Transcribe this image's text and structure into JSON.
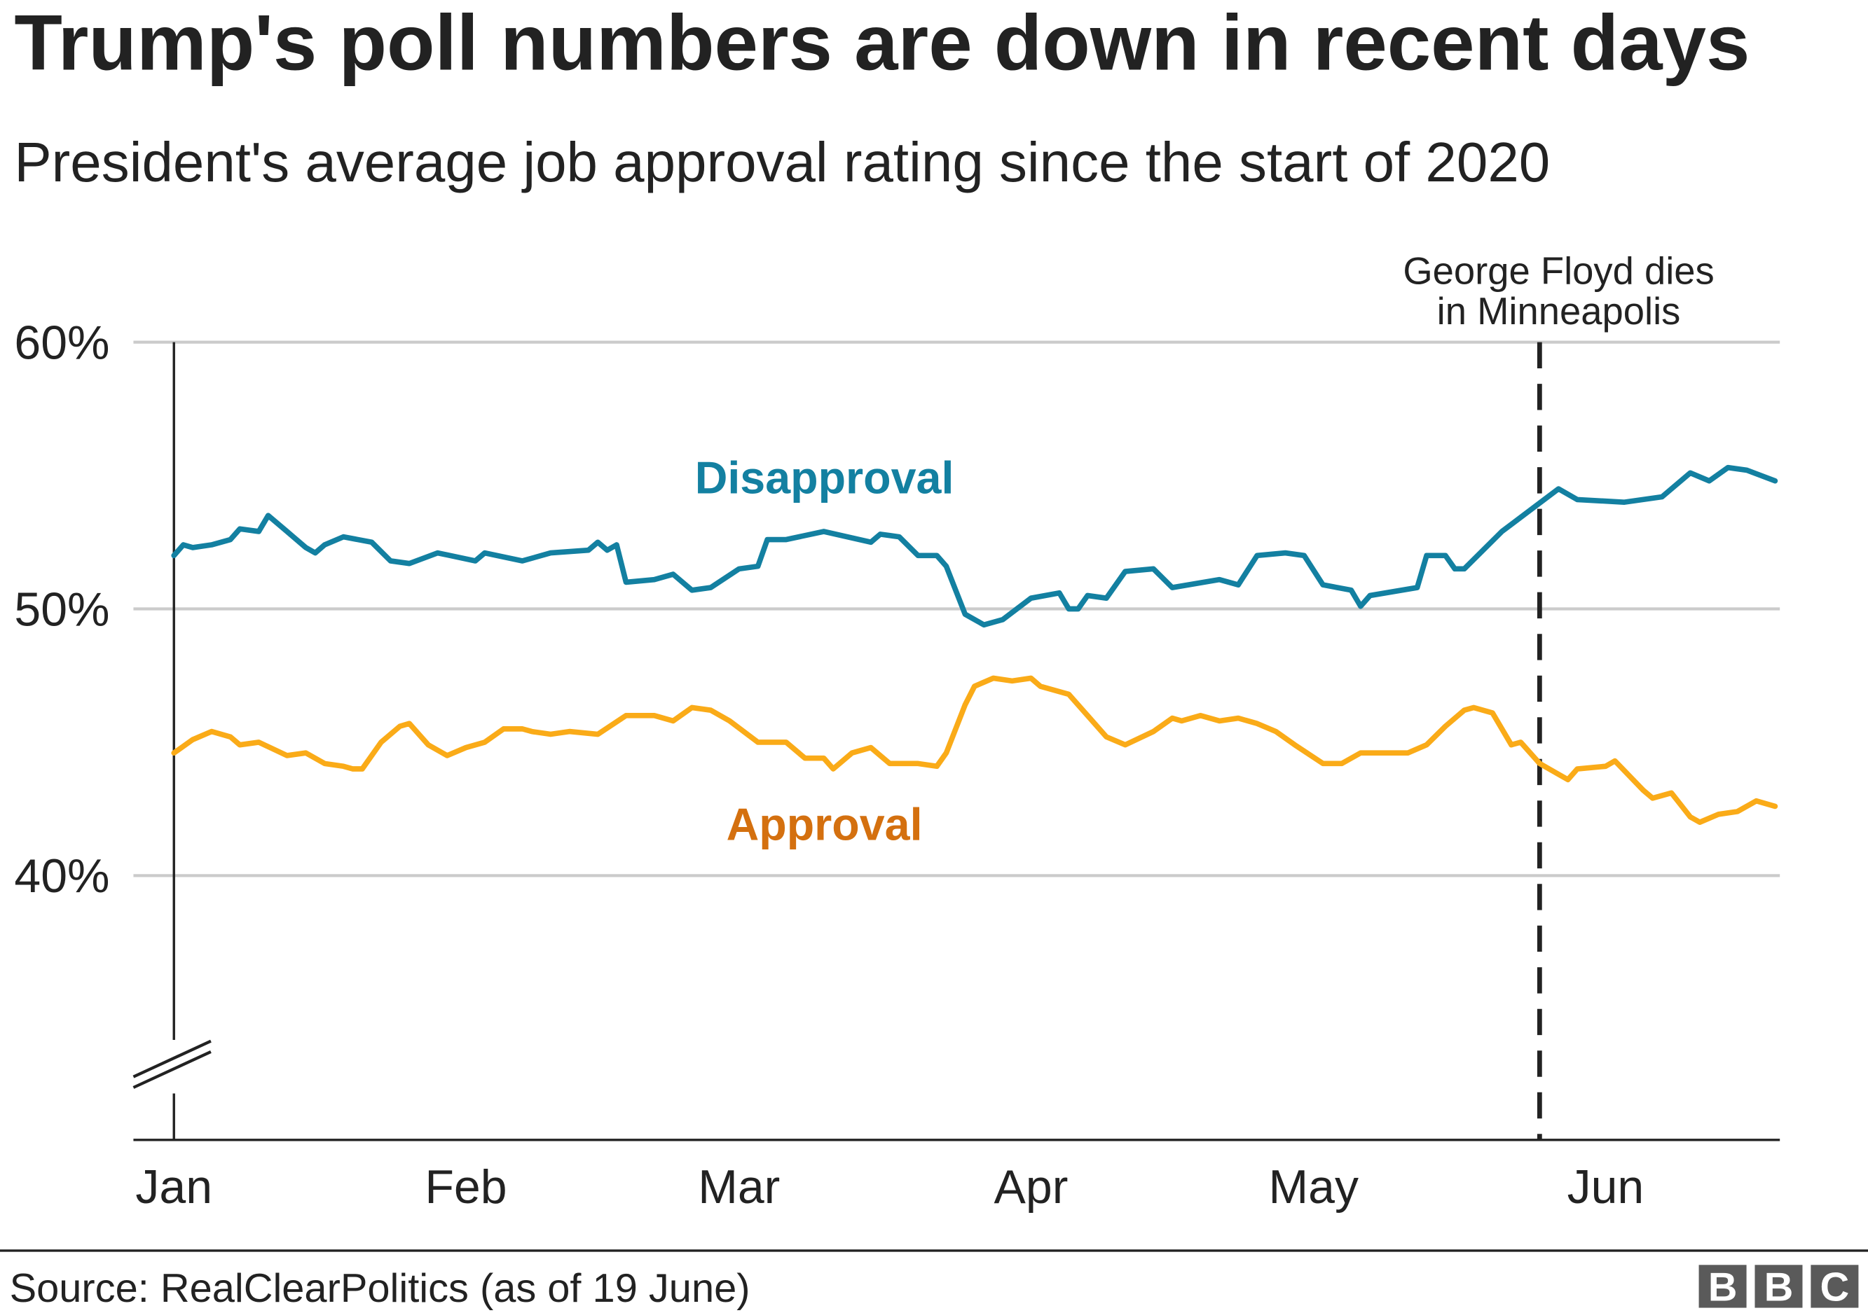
{
  "title": "Trump's poll numbers are down in recent days",
  "subtitle": "President's average job approval rating since the start of 2020",
  "source": "Source: RealClearPolitics (as of 19 June)",
  "logo": "BBC",
  "chart_data": {
    "type": "line",
    "title": "Trump's poll numbers are down in recent days",
    "subtitle": "President's average job approval rating since the start of 2020",
    "xlabel": "",
    "ylabel": "",
    "ylim": [
      30,
      60
    ],
    "y_axis_break": true,
    "yticks": [
      {
        "value": 60,
        "label": "60%"
      },
      {
        "value": 50,
        "label": "50%"
      },
      {
        "value": 40,
        "label": "40%"
      }
    ],
    "xticks": [
      {
        "date": "2020-01-01",
        "label": "Jan"
      },
      {
        "date": "2020-02-01",
        "label": "Feb"
      },
      {
        "date": "2020-03-01",
        "label": "Mar"
      },
      {
        "date": "2020-04-01",
        "label": "Apr"
      },
      {
        "date": "2020-05-01",
        "label": "May"
      },
      {
        "date": "2020-06-01",
        "label": "Jun"
      }
    ],
    "xlim": [
      "2020-01-01",
      "2020-06-19"
    ],
    "grid": "horizontal",
    "annotation": {
      "date": "2020-05-25",
      "lines": [
        "George Floyd dies",
        "in Minneapolis"
      ],
      "style": "dashed"
    },
    "series": [
      {
        "name": "Disapproval",
        "color": "#1380A1",
        "label_color": "#1380A1",
        "points": [
          [
            "2020-01-01",
            52.0
          ],
          [
            "2020-01-02",
            52.4
          ],
          [
            "2020-01-03",
            52.3
          ],
          [
            "2020-01-05",
            52.4
          ],
          [
            "2020-01-07",
            52.6
          ],
          [
            "2020-01-08",
            53.0
          ],
          [
            "2020-01-10",
            52.9
          ],
          [
            "2020-01-11",
            53.5
          ],
          [
            "2020-01-13",
            52.9
          ],
          [
            "2020-01-15",
            52.3
          ],
          [
            "2020-01-16",
            52.1
          ],
          [
            "2020-01-17",
            52.4
          ],
          [
            "2020-01-19",
            52.7
          ],
          [
            "2020-01-22",
            52.5
          ],
          [
            "2020-01-24",
            51.8
          ],
          [
            "2020-01-26",
            51.7
          ],
          [
            "2020-01-29",
            52.1
          ],
          [
            "2020-02-02",
            51.8
          ],
          [
            "2020-02-03",
            52.1
          ],
          [
            "2020-02-07",
            51.8
          ],
          [
            "2020-02-10",
            52.1
          ],
          [
            "2020-02-14",
            52.2
          ],
          [
            "2020-02-15",
            52.5
          ],
          [
            "2020-02-16",
            52.2
          ],
          [
            "2020-02-17",
            52.4
          ],
          [
            "2020-02-18",
            51.0
          ],
          [
            "2020-02-21",
            51.1
          ],
          [
            "2020-02-23",
            51.3
          ],
          [
            "2020-02-25",
            50.7
          ],
          [
            "2020-02-27",
            50.8
          ],
          [
            "2020-03-01",
            51.5
          ],
          [
            "2020-03-03",
            51.6
          ],
          [
            "2020-03-04",
            52.6
          ],
          [
            "2020-03-06",
            52.6
          ],
          [
            "2020-03-10",
            52.9
          ],
          [
            "2020-03-15",
            52.5
          ],
          [
            "2020-03-16",
            52.8
          ],
          [
            "2020-03-18",
            52.7
          ],
          [
            "2020-03-20",
            52.0
          ],
          [
            "2020-03-22",
            52.0
          ],
          [
            "2020-03-23",
            51.6
          ],
          [
            "2020-03-25",
            49.8
          ],
          [
            "2020-03-27",
            49.4
          ],
          [
            "2020-03-29",
            49.6
          ],
          [
            "2020-04-01",
            50.4
          ],
          [
            "2020-04-04",
            50.6
          ],
          [
            "2020-04-05",
            50.0
          ],
          [
            "2020-04-06",
            50.0
          ],
          [
            "2020-04-07",
            50.5
          ],
          [
            "2020-04-09",
            50.4
          ],
          [
            "2020-04-11",
            51.4
          ],
          [
            "2020-04-14",
            51.5
          ],
          [
            "2020-04-16",
            50.8
          ],
          [
            "2020-04-21",
            51.1
          ],
          [
            "2020-04-23",
            50.9
          ],
          [
            "2020-04-25",
            52.0
          ],
          [
            "2020-04-28",
            52.1
          ],
          [
            "2020-04-30",
            52.0
          ],
          [
            "2020-05-02",
            50.9
          ],
          [
            "2020-05-05",
            50.7
          ],
          [
            "2020-05-06",
            50.1
          ],
          [
            "2020-05-07",
            50.5
          ],
          [
            "2020-05-12",
            50.8
          ],
          [
            "2020-05-13",
            52.0
          ],
          [
            "2020-05-15",
            52.0
          ],
          [
            "2020-05-16",
            51.5
          ],
          [
            "2020-05-17",
            51.5
          ],
          [
            "2020-05-21",
            52.9
          ],
          [
            "2020-05-24",
            53.7
          ],
          [
            "2020-05-27",
            54.5
          ],
          [
            "2020-05-29",
            54.1
          ],
          [
            "2020-06-03",
            54.0
          ],
          [
            "2020-06-07",
            54.2
          ],
          [
            "2020-06-10",
            55.1
          ],
          [
            "2020-06-12",
            54.8
          ],
          [
            "2020-06-14",
            55.3
          ],
          [
            "2020-06-16",
            55.2
          ],
          [
            "2020-06-19",
            54.8
          ]
        ]
      },
      {
        "name": "Approval",
        "color": "#FAAB18",
        "label_color": "#D4700F",
        "points": [
          [
            "2020-01-01",
            44.6
          ],
          [
            "2020-01-03",
            45.1
          ],
          [
            "2020-01-05",
            45.4
          ],
          [
            "2020-01-07",
            45.2
          ],
          [
            "2020-01-08",
            44.9
          ],
          [
            "2020-01-10",
            45.0
          ],
          [
            "2020-01-13",
            44.5
          ],
          [
            "2020-01-15",
            44.6
          ],
          [
            "2020-01-17",
            44.2
          ],
          [
            "2020-01-19",
            44.1
          ],
          [
            "2020-01-20",
            44.0
          ],
          [
            "2020-01-21",
            44.0
          ],
          [
            "2020-01-23",
            45.0
          ],
          [
            "2020-01-25",
            45.6
          ],
          [
            "2020-01-26",
            45.7
          ],
          [
            "2020-01-28",
            44.9
          ],
          [
            "2020-01-30",
            44.5
          ],
          [
            "2020-02-01",
            44.8
          ],
          [
            "2020-02-03",
            45.0
          ],
          [
            "2020-02-05",
            45.5
          ],
          [
            "2020-02-07",
            45.5
          ],
          [
            "2020-02-08",
            45.4
          ],
          [
            "2020-02-10",
            45.3
          ],
          [
            "2020-02-12",
            45.4
          ],
          [
            "2020-02-15",
            45.3
          ],
          [
            "2020-02-18",
            46.0
          ],
          [
            "2020-02-21",
            46.0
          ],
          [
            "2020-02-23",
            45.8
          ],
          [
            "2020-02-25",
            46.3
          ],
          [
            "2020-02-27",
            46.2
          ],
          [
            "2020-02-29",
            45.8
          ],
          [
            "2020-03-03",
            45.0
          ],
          [
            "2020-03-06",
            45.0
          ],
          [
            "2020-03-08",
            44.4
          ],
          [
            "2020-03-10",
            44.4
          ],
          [
            "2020-03-11",
            44.0
          ],
          [
            "2020-03-13",
            44.6
          ],
          [
            "2020-03-15",
            44.8
          ],
          [
            "2020-03-17",
            44.2
          ],
          [
            "2020-03-20",
            44.2
          ],
          [
            "2020-03-22",
            44.1
          ],
          [
            "2020-03-23",
            44.6
          ],
          [
            "2020-03-25",
            46.4
          ],
          [
            "2020-03-26",
            47.1
          ],
          [
            "2020-03-28",
            47.4
          ],
          [
            "2020-03-30",
            47.3
          ],
          [
            "2020-04-01",
            47.4
          ],
          [
            "2020-04-02",
            47.1
          ],
          [
            "2020-04-05",
            46.8
          ],
          [
            "2020-04-07",
            46.0
          ],
          [
            "2020-04-09",
            45.2
          ],
          [
            "2020-04-11",
            44.9
          ],
          [
            "2020-04-14",
            45.4
          ],
          [
            "2020-04-16",
            45.9
          ],
          [
            "2020-04-17",
            45.8
          ],
          [
            "2020-04-19",
            46.0
          ],
          [
            "2020-04-21",
            45.8
          ],
          [
            "2020-04-23",
            45.9
          ],
          [
            "2020-04-25",
            45.7
          ],
          [
            "2020-04-27",
            45.4
          ],
          [
            "2020-04-29",
            44.9
          ],
          [
            "2020-05-02",
            44.2
          ],
          [
            "2020-05-04",
            44.2
          ],
          [
            "2020-05-06",
            44.6
          ],
          [
            "2020-05-11",
            44.6
          ],
          [
            "2020-05-13",
            44.9
          ],
          [
            "2020-05-15",
            45.6
          ],
          [
            "2020-05-17",
            46.2
          ],
          [
            "2020-05-18",
            46.3
          ],
          [
            "2020-05-20",
            46.1
          ],
          [
            "2020-05-22",
            44.9
          ],
          [
            "2020-05-23",
            45.0
          ],
          [
            "2020-05-25",
            44.2
          ],
          [
            "2020-05-27",
            43.8
          ],
          [
            "2020-05-28",
            43.6
          ],
          [
            "2020-05-29",
            44.0
          ],
          [
            "2020-06-01",
            44.1
          ],
          [
            "2020-06-02",
            44.3
          ],
          [
            "2020-06-05",
            43.2
          ],
          [
            "2020-06-06",
            42.9
          ],
          [
            "2020-06-08",
            43.1
          ],
          [
            "2020-06-10",
            42.2
          ],
          [
            "2020-06-11",
            42.0
          ],
          [
            "2020-06-13",
            42.3
          ],
          [
            "2020-06-15",
            42.4
          ],
          [
            "2020-06-17",
            42.8
          ],
          [
            "2020-06-19",
            42.6
          ]
        ]
      }
    ]
  }
}
